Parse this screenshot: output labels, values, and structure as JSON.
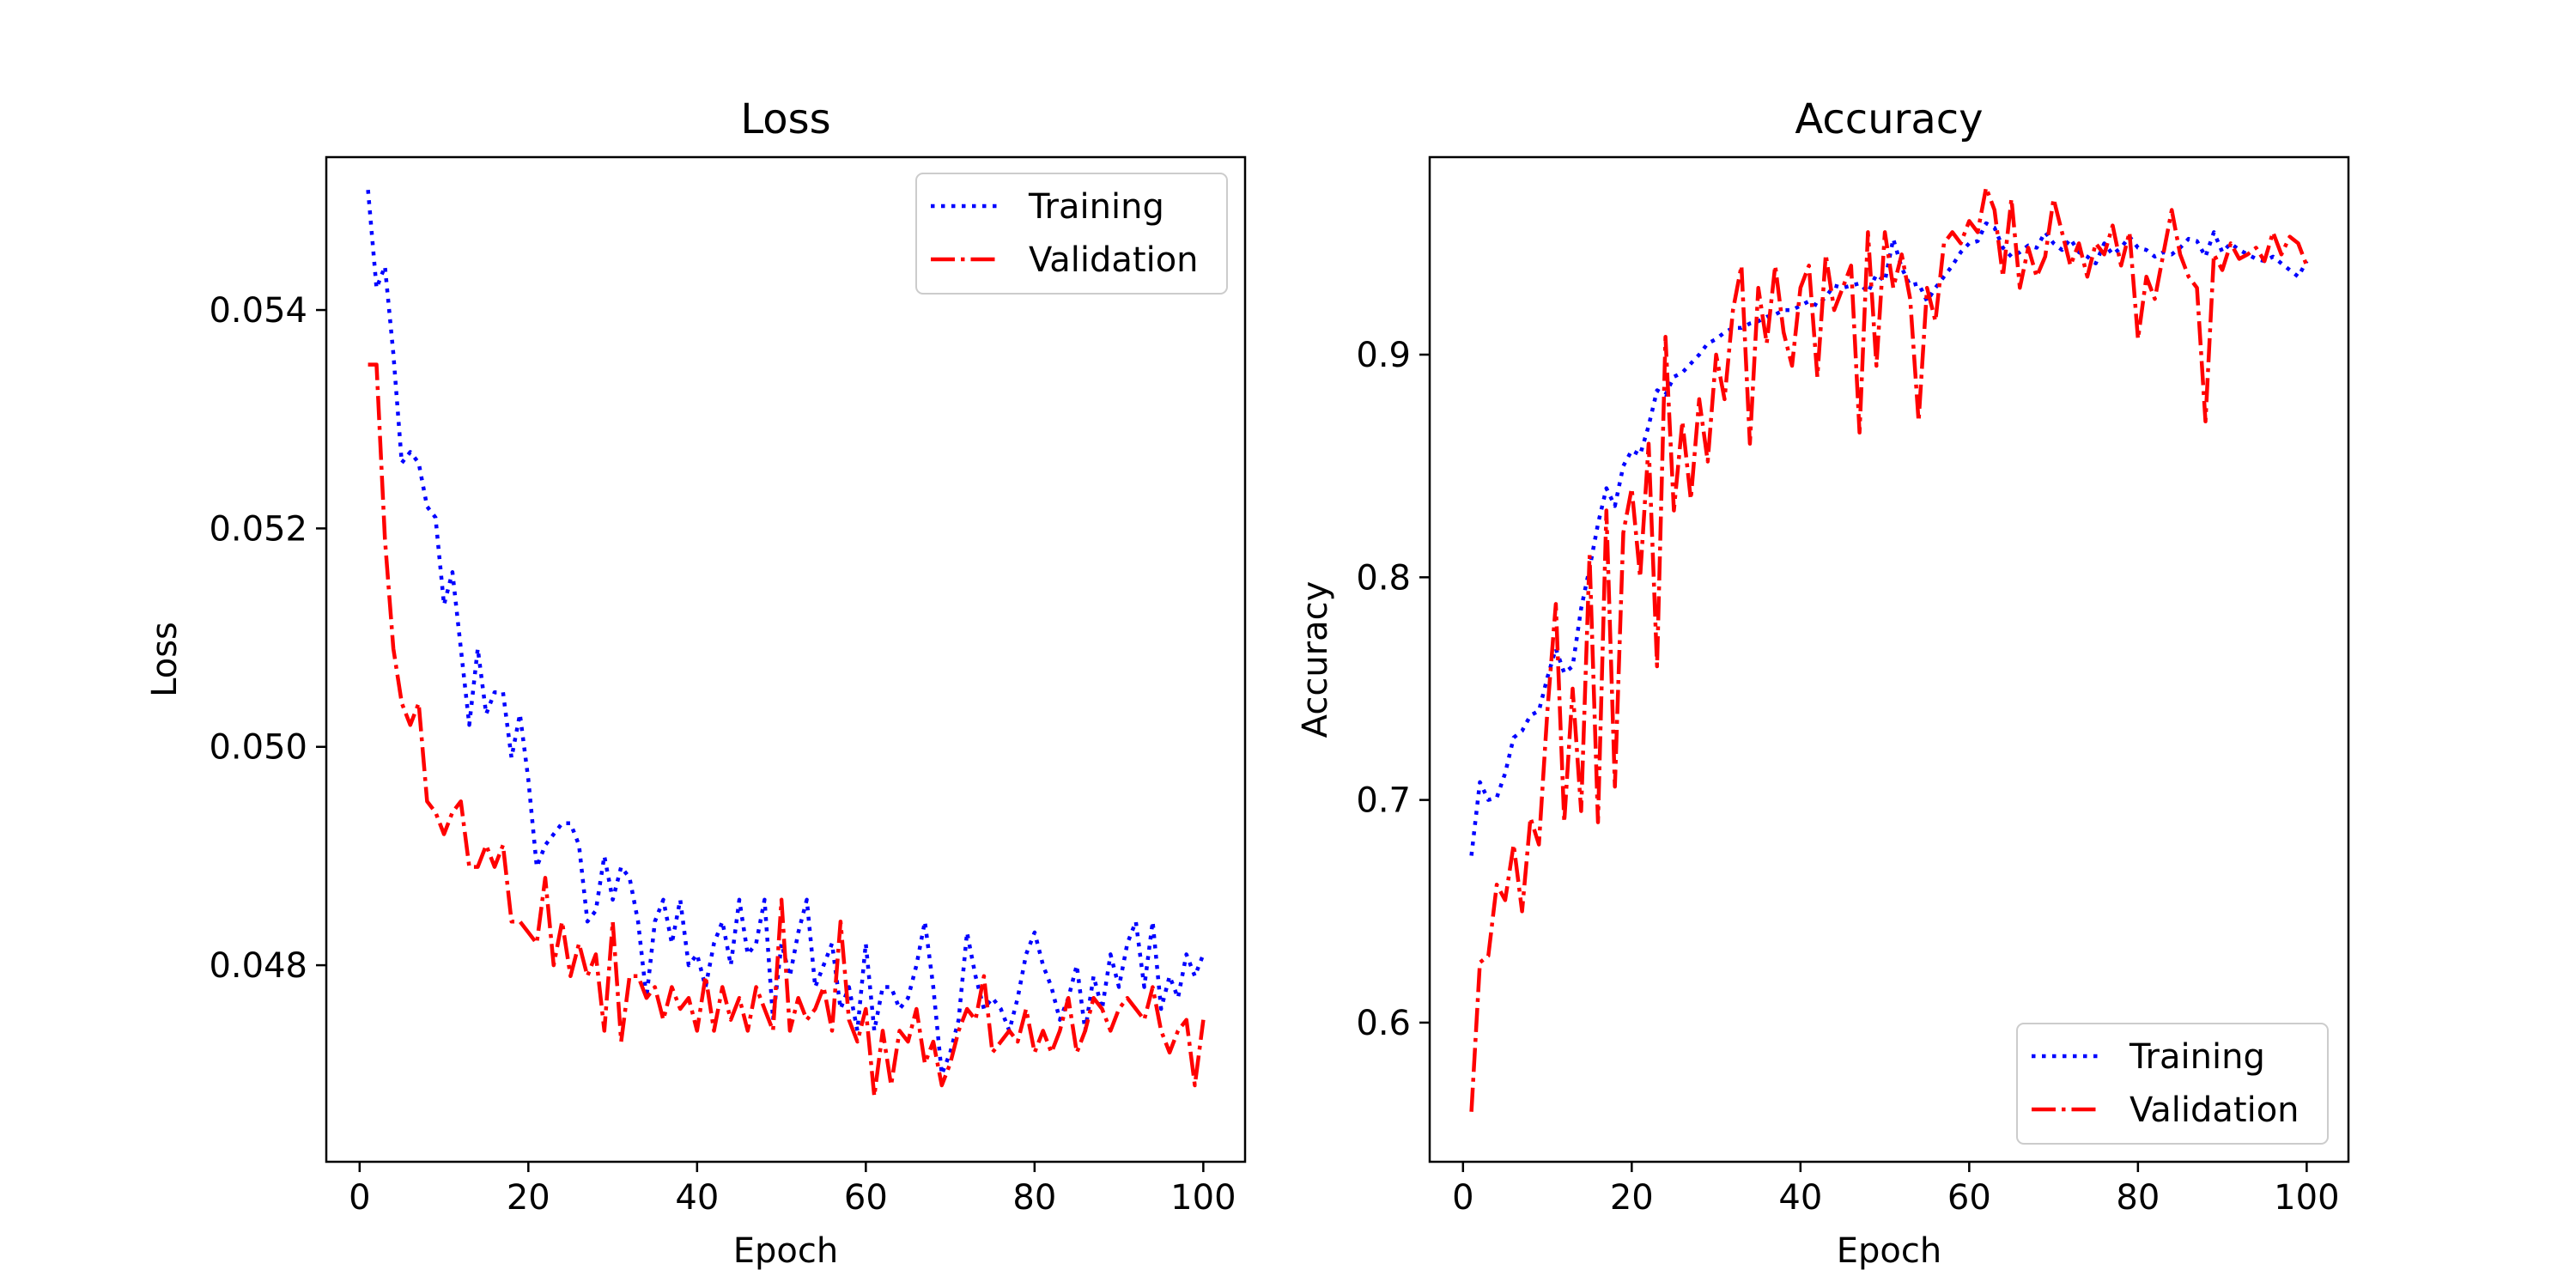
{
  "chart_data": [
    {
      "type": "line",
      "title": "Loss",
      "xlabel": "Epoch",
      "ylabel": "Loss",
      "xlim": [
        -3.95,
        104.95
      ],
      "ylim": [
        0.0462,
        0.0554
      ],
      "xticks": [
        0,
        20,
        40,
        60,
        80,
        100
      ],
      "yticks": [
        0.048,
        0.05,
        0.052,
        0.054
      ],
      "xtick_labels": [
        "0",
        "20",
        "40",
        "60",
        "80",
        "100"
      ],
      "ytick_labels": [
        "0.048",
        "0.050",
        "0.052",
        "0.054"
      ],
      "grid": false,
      "legend_position": "top-right",
      "series": [
        {
          "name": "Training",
          "color": "#0000ff",
          "linestyle": "dotted",
          "x": [
            1,
            2,
            3,
            4,
            5,
            6,
            7,
            8,
            9,
            10,
            11,
            12,
            13,
            14,
            15,
            16,
            17,
            18,
            19,
            20,
            21,
            22,
            23,
            24,
            25,
            26,
            27,
            28,
            29,
            30,
            31,
            32,
            33,
            34,
            35,
            36,
            37,
            38,
            39,
            40,
            41,
            42,
            43,
            44,
            45,
            46,
            47,
            48,
            49,
            50,
            51,
            52,
            53,
            54,
            55,
            56,
            57,
            58,
            59,
            60,
            61,
            62,
            63,
            64,
            65,
            66,
            67,
            68,
            69,
            70,
            71,
            72,
            73,
            74,
            75,
            76,
            77,
            78,
            79,
            80,
            81,
            82,
            83,
            84,
            85,
            86,
            87,
            88,
            89,
            90,
            91,
            92,
            93,
            94,
            95,
            96,
            97,
            98,
            99,
            100
          ],
          "y": [
            0.0551,
            0.0542,
            0.0544,
            0.0536,
            0.0526,
            0.0527,
            0.0526,
            0.0522,
            0.0521,
            0.0513,
            0.0516,
            0.0509,
            0.0502,
            0.0509,
            0.0503,
            0.0505,
            0.0505,
            0.0499,
            0.0503,
            0.0497,
            0.0489,
            0.0491,
            0.0492,
            0.0493,
            0.0493,
            0.0491,
            0.0484,
            0.0485,
            0.049,
            0.0486,
            0.0489,
            0.0488,
            0.0484,
            0.0477,
            0.0484,
            0.0486,
            0.0482,
            0.0486,
            0.048,
            0.0481,
            0.0478,
            0.0482,
            0.0484,
            0.048,
            0.0486,
            0.0481,
            0.0482,
            0.0486,
            0.0475,
            0.0482,
            0.0479,
            0.0483,
            0.0486,
            0.0478,
            0.048,
            0.0482,
            0.0476,
            0.0478,
            0.0474,
            0.0482,
            0.0474,
            0.0478,
            0.0478,
            0.0476,
            0.0477,
            0.048,
            0.0484,
            0.0478,
            0.047,
            0.0472,
            0.0475,
            0.0483,
            0.0479,
            0.0476,
            0.0477,
            0.0476,
            0.0474,
            0.0477,
            0.0481,
            0.0483,
            0.048,
            0.0478,
            0.0475,
            0.0477,
            0.048,
            0.0474,
            0.0479,
            0.0476,
            0.0481,
            0.0478,
            0.0482,
            0.0484,
            0.0478,
            0.0484,
            0.0476,
            0.0479,
            0.0477,
            0.0481,
            0.0479,
            0.0481
          ]
        },
        {
          "name": "Validation",
          "color": "#ff0000",
          "linestyle": "dashdot",
          "x": [
            1,
            2,
            3,
            4,
            5,
            6,
            7,
            8,
            9,
            10,
            11,
            12,
            13,
            14,
            15,
            16,
            17,
            18,
            19,
            20,
            21,
            22,
            23,
            24,
            25,
            26,
            27,
            28,
            29,
            30,
            31,
            32,
            33,
            34,
            35,
            36,
            37,
            38,
            39,
            40,
            41,
            42,
            43,
            44,
            45,
            46,
            47,
            48,
            49,
            50,
            51,
            52,
            53,
            54,
            55,
            56,
            57,
            58,
            59,
            60,
            61,
            62,
            63,
            64,
            65,
            66,
            67,
            68,
            69,
            70,
            71,
            72,
            73,
            74,
            75,
            76,
            77,
            78,
            79,
            80,
            81,
            82,
            83,
            84,
            85,
            86,
            87,
            88,
            89,
            90,
            91,
            92,
            93,
            94,
            95,
            96,
            97,
            98,
            99,
            100
          ],
          "y": [
            0.0535,
            0.0535,
            0.0519,
            0.0509,
            0.0504,
            0.0502,
            0.0504,
            0.0495,
            0.0494,
            0.0492,
            0.0494,
            0.0495,
            0.0489,
            0.0489,
            0.0491,
            0.0489,
            0.0491,
            0.0484,
            0.0484,
            0.0483,
            0.0482,
            0.0488,
            0.048,
            0.0484,
            0.0479,
            0.0482,
            0.0479,
            0.0481,
            0.0474,
            0.0484,
            0.0473,
            0.0479,
            0.0479,
            0.0477,
            0.0478,
            0.0475,
            0.0478,
            0.0476,
            0.0477,
            0.0474,
            0.0479,
            0.0474,
            0.0478,
            0.0475,
            0.0477,
            0.0474,
            0.0478,
            0.0476,
            0.0474,
            0.0486,
            0.0474,
            0.0477,
            0.0475,
            0.0476,
            0.0478,
            0.0474,
            0.0484,
            0.0475,
            0.0473,
            0.0476,
            0.0468,
            0.0474,
            0.0469,
            0.0474,
            0.0473,
            0.0476,
            0.0471,
            0.0473,
            0.0469,
            0.0471,
            0.0474,
            0.0476,
            0.0475,
            0.0479,
            0.0472,
            0.0473,
            0.0474,
            0.0473,
            0.0476,
            0.0472,
            0.0474,
            0.0472,
            0.0474,
            0.0477,
            0.0472,
            0.0474,
            0.0477,
            0.0476,
            0.0474,
            0.0476,
            0.0477,
            0.0476,
            0.0475,
            0.0478,
            0.0474,
            0.0472,
            0.0474,
            0.0475,
            0.0469,
            0.0475
          ]
        }
      ]
    },
    {
      "type": "line",
      "title": "Accuracy",
      "xlabel": "Epoch",
      "ylabel": "Accuracy",
      "xlim": [
        -3.95,
        104.95
      ],
      "ylim": [
        0.5375,
        0.9887
      ],
      "xticks": [
        0,
        20,
        40,
        60,
        80,
        100
      ],
      "yticks": [
        0.6,
        0.7,
        0.8,
        0.9
      ],
      "xtick_labels": [
        "0",
        "20",
        "40",
        "60",
        "80",
        "100"
      ],
      "ytick_labels": [
        "0.6",
        "0.7",
        "0.8",
        "0.9"
      ],
      "grid": false,
      "legend_position": "bottom-right",
      "series": [
        {
          "name": "Training",
          "color": "#0000ff",
          "linestyle": "dotted",
          "x": [
            1,
            2,
            3,
            4,
            5,
            6,
            7,
            8,
            9,
            10,
            11,
            12,
            13,
            14,
            15,
            16,
            17,
            18,
            19,
            20,
            21,
            22,
            23,
            24,
            25,
            26,
            27,
            28,
            29,
            30,
            31,
            32,
            33,
            34,
            35,
            36,
            37,
            38,
            39,
            40,
            41,
            42,
            43,
            44,
            45,
            46,
            47,
            48,
            49,
            50,
            51,
            52,
            53,
            54,
            55,
            56,
            57,
            58,
            59,
            60,
            61,
            62,
            63,
            64,
            65,
            66,
            67,
            68,
            69,
            70,
            71,
            72,
            73,
            74,
            75,
            76,
            77,
            78,
            79,
            80,
            81,
            82,
            83,
            84,
            85,
            86,
            87,
            88,
            89,
            90,
            91,
            92,
            93,
            94,
            95,
            96,
            97,
            98,
            99,
            100
          ],
          "y": [
            0.675,
            0.708,
            0.7,
            0.701,
            0.712,
            0.728,
            0.731,
            0.738,
            0.74,
            0.755,
            0.768,
            0.757,
            0.76,
            0.786,
            0.804,
            0.824,
            0.84,
            0.832,
            0.85,
            0.857,
            0.855,
            0.868,
            0.884,
            0.882,
            0.89,
            0.892,
            0.896,
            0.9,
            0.905,
            0.907,
            0.91,
            0.912,
            0.912,
            0.914,
            0.915,
            0.917,
            0.918,
            0.92,
            0.92,
            0.922,
            0.924,
            0.922,
            0.926,
            0.931,
            0.93,
            0.931,
            0.932,
            0.928,
            0.936,
            0.933,
            0.952,
            0.939,
            0.931,
            0.932,
            0.924,
            0.93,
            0.935,
            0.94,
            0.946,
            0.95,
            0.951,
            0.959,
            0.957,
            0.948,
            0.944,
            0.946,
            0.949,
            0.948,
            0.955,
            0.95,
            0.947,
            0.952,
            0.946,
            0.944,
            0.941,
            0.95,
            0.945,
            0.948,
            0.953,
            0.948,
            0.947,
            0.944,
            0.946,
            0.945,
            0.948,
            0.952,
            0.951,
            0.944,
            0.955,
            0.946,
            0.95,
            0.947,
            0.945,
            0.943,
            0.942,
            0.944,
            0.941,
            0.938,
            0.935,
            0.942
          ]
        },
        {
          "name": "Validation",
          "color": "#ff0000",
          "linestyle": "dashdot",
          "x": [
            1,
            2,
            3,
            4,
            5,
            6,
            7,
            8,
            9,
            10,
            11,
            12,
            13,
            14,
            15,
            16,
            17,
            18,
            19,
            20,
            21,
            22,
            23,
            24,
            25,
            26,
            27,
            28,
            29,
            30,
            31,
            32,
            33,
            34,
            35,
            36,
            37,
            38,
            39,
            40,
            41,
            42,
            43,
            44,
            45,
            46,
            47,
            48,
            49,
            50,
            51,
            52,
            53,
            54,
            55,
            56,
            57,
            58,
            59,
            60,
            61,
            62,
            63,
            64,
            65,
            66,
            67,
            68,
            69,
            70,
            71,
            72,
            73,
            74,
            75,
            76,
            77,
            78,
            79,
            80,
            81,
            82,
            83,
            84,
            85,
            86,
            87,
            88,
            89,
            90,
            91,
            92,
            93,
            94,
            95,
            96,
            97,
            98,
            99,
            100
          ],
          "y": [
            0.56,
            0.627,
            0.63,
            0.662,
            0.655,
            0.68,
            0.65,
            0.692,
            0.68,
            0.74,
            0.788,
            0.69,
            0.75,
            0.695,
            0.81,
            0.69,
            0.83,
            0.706,
            0.82,
            0.84,
            0.8,
            0.86,
            0.76,
            0.908,
            0.83,
            0.87,
            0.835,
            0.88,
            0.852,
            0.9,
            0.88,
            0.92,
            0.94,
            0.86,
            0.93,
            0.905,
            0.94,
            0.91,
            0.895,
            0.93,
            0.94,
            0.89,
            0.945,
            0.92,
            0.93,
            0.94,
            0.865,
            0.955,
            0.895,
            0.955,
            0.93,
            0.945,
            0.925,
            0.87,
            0.93,
            0.915,
            0.95,
            0.955,
            0.95,
            0.96,
            0.955,
            0.975,
            0.965,
            0.935,
            0.97,
            0.93,
            0.948,
            0.935,
            0.944,
            0.97,
            0.955,
            0.94,
            0.95,
            0.935,
            0.95,
            0.945,
            0.958,
            0.94,
            0.955,
            0.907,
            0.935,
            0.925,
            0.945,
            0.965,
            0.945,
            0.935,
            0.93,
            0.87,
            0.945,
            0.938,
            0.95,
            0.943,
            0.945,
            0.948,
            0.942,
            0.955,
            0.945,
            0.953,
            0.95,
            0.94
          ]
        }
      ]
    }
  ]
}
